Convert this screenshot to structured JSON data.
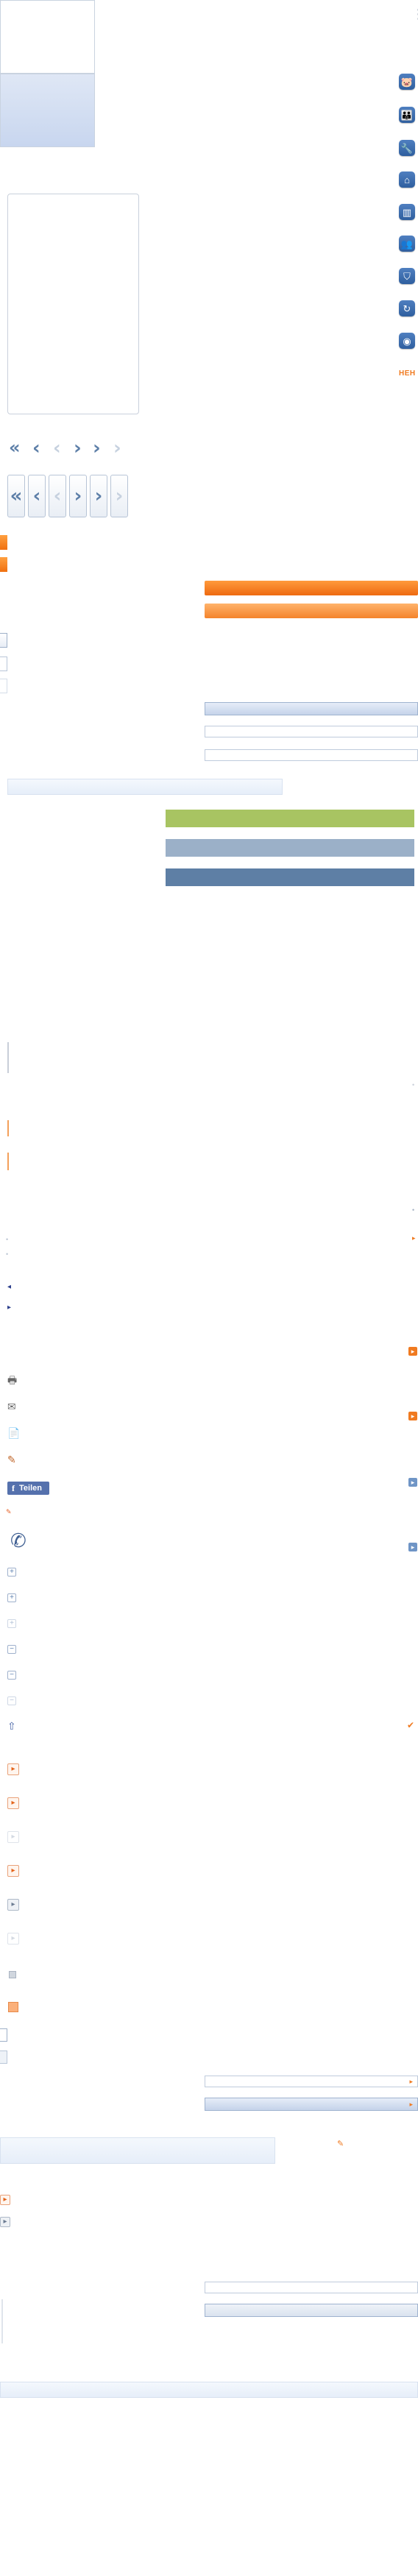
{
  "top_panel": {
    "scroll_glyph": "⋮"
  },
  "category_icons": [
    {
      "name": "piggy-bank-icon",
      "glyph": "🐷"
    },
    {
      "name": "family-icon",
      "glyph": "👪"
    },
    {
      "name": "tools-icon",
      "glyph": "🔧"
    },
    {
      "name": "house-icon",
      "glyph": "⌂"
    },
    {
      "name": "building-icon",
      "glyph": "▥"
    },
    {
      "name": "people-icon",
      "glyph": "👥"
    },
    {
      "name": "funnel-icon",
      "glyph": "⛉"
    },
    {
      "name": "refresh-icon",
      "glyph": "↻"
    },
    {
      "name": "camera-icon",
      "glyph": "◉"
    }
  ],
  "more_link": {
    "label": "HEH"
  },
  "chevrons": {
    "small": [
      "«",
      "‹",
      "‹",
      "›",
      "›",
      "›"
    ],
    "boxed": [
      "«",
      "‹",
      "‹",
      "›",
      "›",
      "›"
    ]
  },
  "share": {
    "facebook_label": "Teilen",
    "facebook_glyph": "f"
  },
  "utility_icons": [
    {
      "name": "print-icon",
      "glyph": "🖶"
    },
    {
      "name": "email-icon",
      "glyph": "✉"
    },
    {
      "name": "pdf-icon",
      "glyph": "📄"
    },
    {
      "name": "edit-icon",
      "glyph": "✎"
    }
  ],
  "phone": {
    "glyph": "✆"
  },
  "pencil": {
    "glyph": "✎"
  },
  "plus": "+",
  "minus": "−",
  "up_arrow": "⇧",
  "check": "✔",
  "arrow_right": "▸",
  "arrow_left": "◂",
  "dot": "•",
  "colors": {
    "accent_orange": "#f07a20",
    "accent_blue": "#4f7fc0",
    "green": "#a8c462",
    "navy": "#5e7fa5"
  }
}
